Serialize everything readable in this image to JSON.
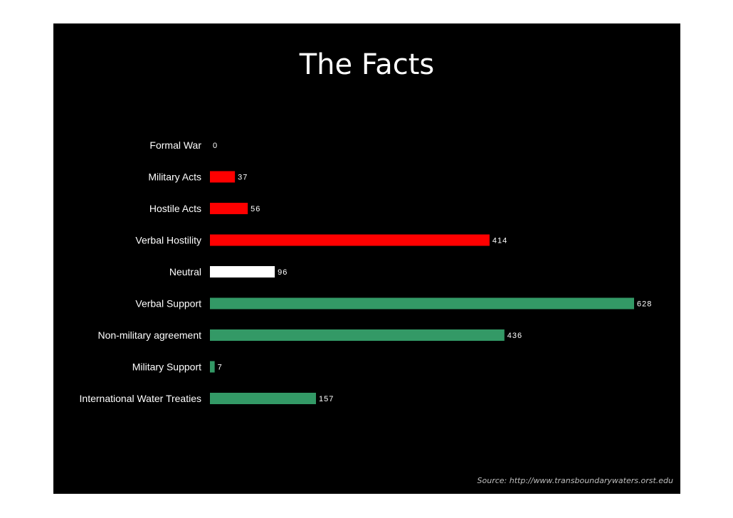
{
  "slide": {
    "title": "The Facts",
    "source": "Source: http://www.transboundarywaters.orst.edu"
  },
  "colors": {
    "background": "#000000",
    "conflict": "#ff0000",
    "neutral": "#ffffff",
    "cooperation": "#339966",
    "text": "#ffffff"
  },
  "chart_data": {
    "type": "bar",
    "orientation": "horizontal",
    "title": "The Facts",
    "xlabel": "",
    "ylabel": "",
    "grid": false,
    "legend": "none",
    "xlim": [
      0,
      640
    ],
    "categories": [
      "Formal War",
      "Military Acts",
      "Hostile Acts",
      "Verbal Hostility",
      "Neutral",
      "Verbal Support",
      "Non-military agreement",
      "Military Support",
      "International Water Treaties"
    ],
    "values": [
      0,
      37,
      56,
      414,
      96,
      628,
      436,
      7,
      157
    ],
    "bar_colors": [
      "#ff0000",
      "#ff0000",
      "#ff0000",
      "#ff0000",
      "#ffffff",
      "#339966",
      "#339966",
      "#339966",
      "#339966"
    ]
  }
}
